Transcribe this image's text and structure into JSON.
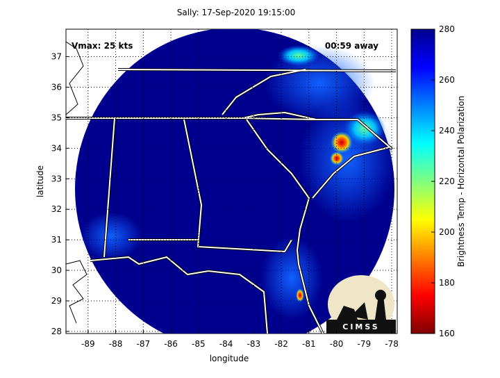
{
  "map_data": {
    "title": "Sally: 17-Sep-2020 19:15:00",
    "xlabel": "longitude",
    "ylabel": "latitude",
    "xlim": [
      -89.8,
      -77.8
    ],
    "ylim": [
      27.93,
      37.9
    ],
    "xticks": [
      -89,
      -88,
      -87,
      -86,
      -85,
      -84,
      -83,
      -82,
      -81,
      -80,
      -79,
      -78
    ],
    "yticks": [
      28,
      29,
      30,
      31,
      32,
      33,
      34,
      35,
      36,
      37
    ],
    "grid": true,
    "annotations": {
      "left": "Vmax: 25 kts",
      "right": "00:59 away"
    },
    "colorbar": {
      "label": "Brightness Temp - Horizontal Polarization",
      "lim": [
        160,
        280
      ],
      "ticks": [
        160,
        180,
        200,
        220,
        240,
        260,
        280
      ]
    },
    "logo": "CIMSS"
  }
}
